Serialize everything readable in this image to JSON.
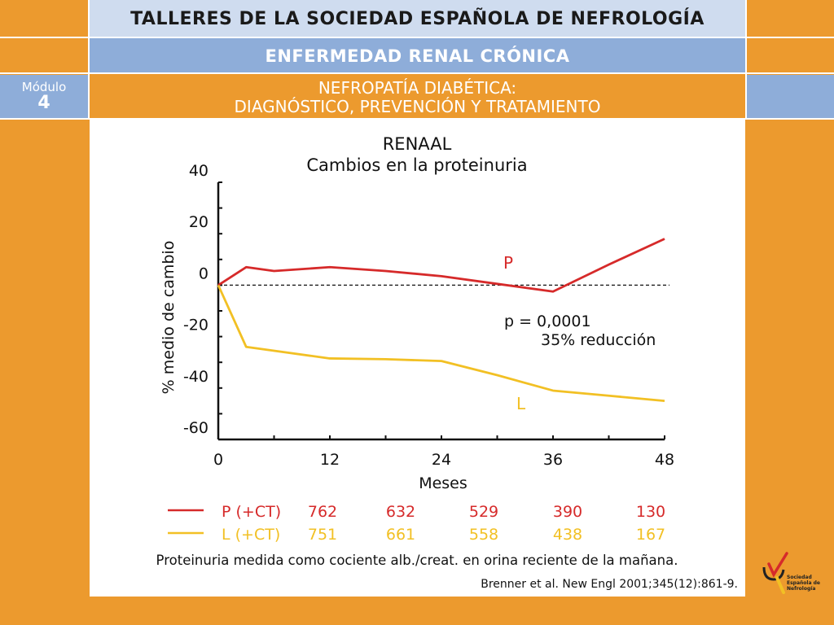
{
  "header": {
    "title": "TALLERES DE LA SOCIEDAD ESPAÑOLA DE NEFROLOGÍA",
    "subtitle": "ENFERMEDAD RENAL CRÓNICA",
    "section_line1": "NEFROPATÍA DIABÉTICA:",
    "section_line2": "DIAGNÓSTICO, PREVENCIÓN  Y TRATAMIENTO",
    "module_label": "Módulo",
    "module_number": "4"
  },
  "chart_data": {
    "type": "line",
    "title": "RENAAL",
    "subtitle": "Cambios en la proteinuria",
    "xlabel": "Meses",
    "ylabel": "% medio de cambio",
    "xlim": [
      0,
      48
    ],
    "ylim": [
      -60,
      40
    ],
    "x_ticks": [
      0,
      12,
      24,
      36,
      48
    ],
    "y_ticks": [
      40,
      20,
      0,
      -20,
      -40,
      -60
    ],
    "reference_line": 0,
    "series": [
      {
        "name": "P (+CT)",
        "label": "P",
        "color": "#d62a2a",
        "points": [
          [
            0,
            0
          ],
          [
            3,
            7
          ],
          [
            6,
            5.5
          ],
          [
            12,
            7
          ],
          [
            18,
            5.5
          ],
          [
            24,
            3.5
          ],
          [
            30,
            0.5
          ],
          [
            36,
            -2.5
          ],
          [
            42,
            8
          ],
          [
            48,
            18
          ]
        ],
        "patients": [
          762,
          632,
          529,
          390,
          130
        ]
      },
      {
        "name": "L (+CT)",
        "label": "L",
        "color": "#f2c024",
        "points": [
          [
            0,
            0
          ],
          [
            3,
            -24
          ],
          [
            6,
            -25.5
          ],
          [
            12,
            -28.5
          ],
          [
            18,
            -28.8
          ],
          [
            24,
            -29.5
          ],
          [
            30,
            -35
          ],
          [
            36,
            -41
          ],
          [
            42,
            -43
          ],
          [
            48,
            -45
          ]
        ],
        "patients": [
          751,
          661,
          558,
          438,
          167
        ]
      }
    ],
    "annotations": [
      "p = 0,0001",
      "35% reducción"
    ]
  },
  "footnote": "Proteinuria medida como cociente alb./creat. en orina reciente de la mañana.",
  "citation": "Brenner et al. New Engl 2001;345(12):861-9.",
  "logo": {
    "line1": "Sociedad",
    "line2": "Española de",
    "line3": "Nefrología"
  }
}
